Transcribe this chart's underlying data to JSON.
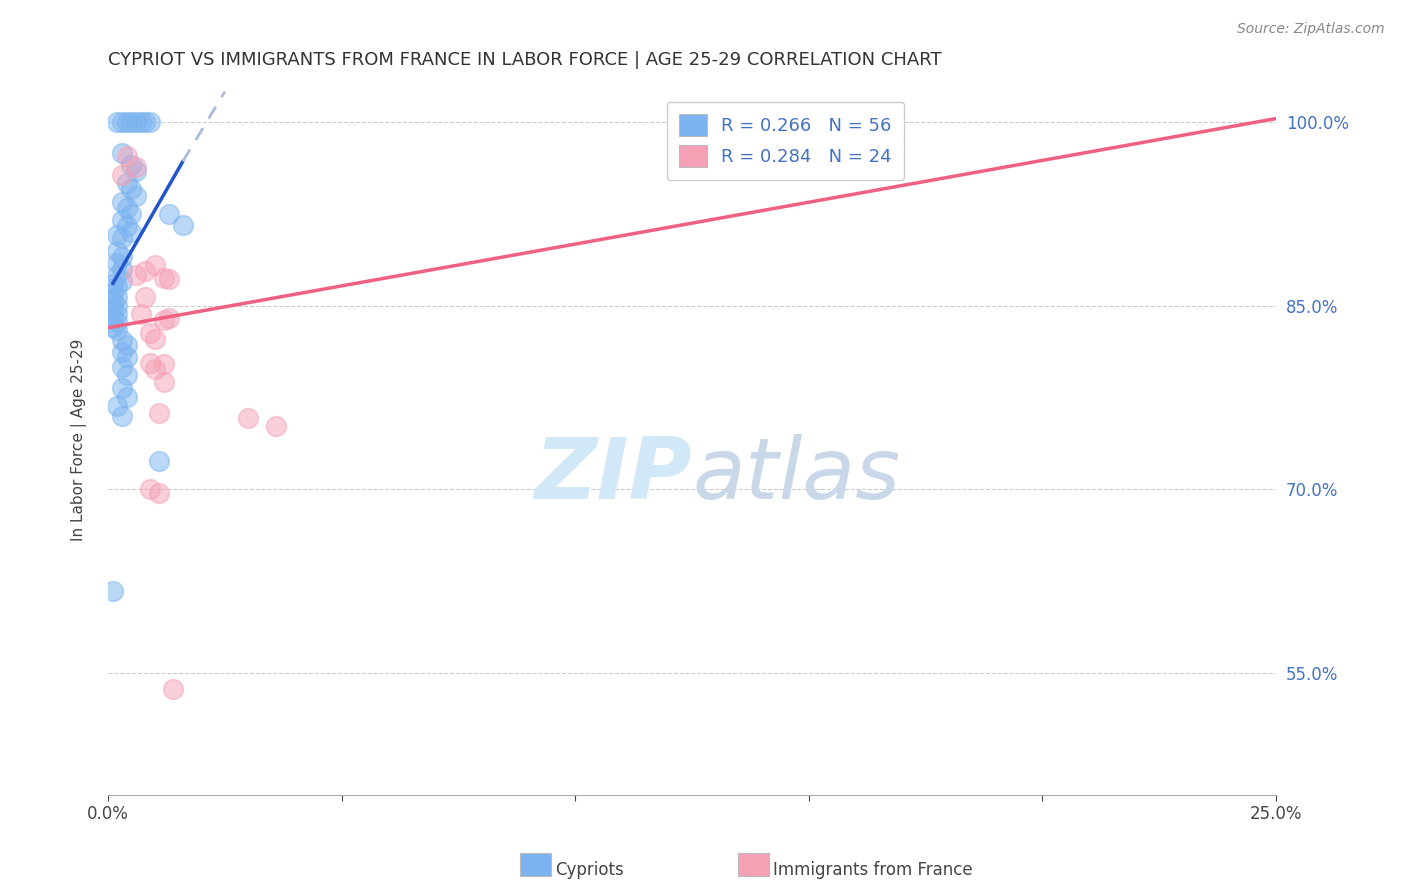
{
  "title": "CYPRIOT VS IMMIGRANTS FROM FRANCE IN LABOR FORCE | AGE 25-29 CORRELATION CHART",
  "source": "Source: ZipAtlas.com",
  "ylabel": "In Labor Force | Age 25-29",
  "xlim": [
    0.0,
    0.25
  ],
  "ylim": [
    0.45,
    1.03
  ],
  "yticks": [
    0.55,
    0.7,
    0.85,
    1.0
  ],
  "ytick_labels": [
    "55.0%",
    "70.0%",
    "85.0%",
    "100.0%"
  ],
  "cypriot_color": "#7ab3f0",
  "france_color": "#f5a0b5",
  "blue_line_color": "#2255cc",
  "blue_dash_color": "#aabbdd",
  "pink_line_color": "#f06080",
  "watermark_color": "#d0e8f8",
  "cypriot_scatter": [
    [
      0.002,
      1.0
    ],
    [
      0.003,
      1.0
    ],
    [
      0.004,
      1.0
    ],
    [
      0.005,
      1.0
    ],
    [
      0.006,
      1.0
    ],
    [
      0.007,
      1.0
    ],
    [
      0.008,
      1.0
    ],
    [
      0.009,
      1.0
    ],
    [
      0.003,
      0.975
    ],
    [
      0.005,
      0.965
    ],
    [
      0.006,
      0.96
    ],
    [
      0.004,
      0.95
    ],
    [
      0.005,
      0.945
    ],
    [
      0.006,
      0.94
    ],
    [
      0.003,
      0.935
    ],
    [
      0.004,
      0.93
    ],
    [
      0.005,
      0.925
    ],
    [
      0.003,
      0.92
    ],
    [
      0.004,
      0.915
    ],
    [
      0.005,
      0.91
    ],
    [
      0.002,
      0.908
    ],
    [
      0.003,
      0.905
    ],
    [
      0.002,
      0.895
    ],
    [
      0.003,
      0.89
    ],
    [
      0.002,
      0.885
    ],
    [
      0.003,
      0.88
    ],
    [
      0.002,
      0.875
    ],
    [
      0.003,
      0.87
    ],
    [
      0.001,
      0.868
    ],
    [
      0.002,
      0.865
    ],
    [
      0.001,
      0.86
    ],
    [
      0.002,
      0.857
    ],
    [
      0.001,
      0.853
    ],
    [
      0.002,
      0.85
    ],
    [
      0.001,
      0.847
    ],
    [
      0.002,
      0.843
    ],
    [
      0.001,
      0.84
    ],
    [
      0.002,
      0.837
    ],
    [
      0.001,
      0.833
    ],
    [
      0.002,
      0.83
    ],
    [
      0.003,
      0.822
    ],
    [
      0.004,
      0.818
    ],
    [
      0.003,
      0.812
    ],
    [
      0.004,
      0.808
    ],
    [
      0.003,
      0.8
    ],
    [
      0.004,
      0.793
    ],
    [
      0.003,
      0.783
    ],
    [
      0.004,
      0.775
    ],
    [
      0.002,
      0.768
    ],
    [
      0.003,
      0.76
    ],
    [
      0.013,
      0.925
    ],
    [
      0.016,
      0.916
    ],
    [
      0.001,
      0.617
    ],
    [
      0.011,
      0.723
    ]
  ],
  "france_scatter": [
    [
      0.004,
      0.972
    ],
    [
      0.006,
      0.963
    ],
    [
      0.003,
      0.957
    ],
    [
      0.008,
      0.878
    ],
    [
      0.01,
      0.883
    ],
    [
      0.006,
      0.875
    ],
    [
      0.012,
      0.873
    ],
    [
      0.013,
      0.872
    ],
    [
      0.008,
      0.857
    ],
    [
      0.007,
      0.843
    ],
    [
      0.013,
      0.84
    ],
    [
      0.012,
      0.838
    ],
    [
      0.009,
      0.828
    ],
    [
      0.01,
      0.823
    ],
    [
      0.009,
      0.803
    ],
    [
      0.01,
      0.798
    ],
    [
      0.012,
      0.802
    ],
    [
      0.012,
      0.788
    ],
    [
      0.03,
      0.758
    ],
    [
      0.011,
      0.762
    ],
    [
      0.036,
      0.752
    ],
    [
      0.009,
      0.7
    ],
    [
      0.011,
      0.697
    ],
    [
      0.014,
      0.537
    ]
  ],
  "blue_trendline_solid": [
    [
      0.001,
      0.868
    ],
    [
      0.016,
      0.968
    ]
  ],
  "blue_trendline_dash": [
    [
      0.016,
      0.968
    ],
    [
      0.025,
      1.025
    ]
  ],
  "pink_trendline": [
    [
      0.0,
      0.832
    ],
    [
      0.25,
      1.003
    ]
  ]
}
